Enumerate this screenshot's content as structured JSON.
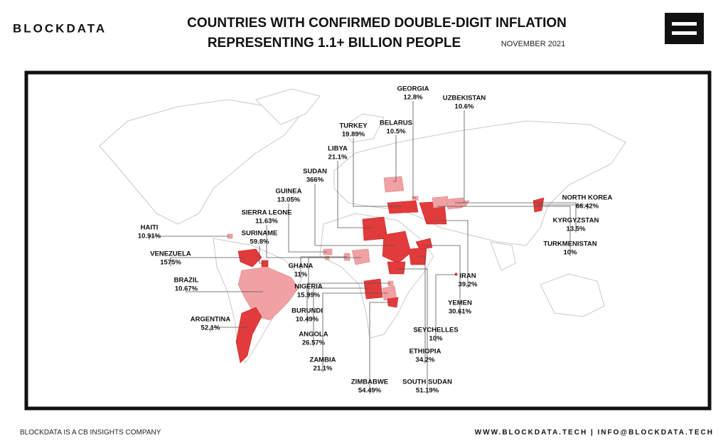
{
  "header": {
    "logo": "BLOCKDATA",
    "title_line1": "COUNTRIES WITH CONFIRMED DOUBLE-DIGIT INFLATION",
    "title_line2": "REPRESENTING 1.1+ BILLION PEOPLE",
    "date": "NOVEMBER 2021"
  },
  "countries": [
    {
      "name": "GEORGIA",
      "value": "12.8%"
    },
    {
      "name": "UZBEKISTAN",
      "value": "10.6%"
    },
    {
      "name": "BELARUS",
      "value": "10.5%"
    },
    {
      "name": "TURKEY",
      "value": "19.89%"
    },
    {
      "name": "LIBYA",
      "value": "21.1%"
    },
    {
      "name": "SUDAN",
      "value": "366%"
    },
    {
      "name": "GUINEA",
      "value": "13.05%"
    },
    {
      "name": "SIERRA LEONE",
      "value": "11.63%"
    },
    {
      "name": "HAITI",
      "value": "10.91%"
    },
    {
      "name": "SURINAME",
      "value": "59.8%"
    },
    {
      "name": "VENEZUELA",
      "value": "1575%"
    },
    {
      "name": "GHANA",
      "value": "11%"
    },
    {
      "name": "BRAZIL",
      "value": "10.67%"
    },
    {
      "name": "NIGERIA",
      "value": "15.99%"
    },
    {
      "name": "BURUNDI",
      "value": "10.49%"
    },
    {
      "name": "ARGENTINA",
      "value": "52.1%"
    },
    {
      "name": "ANGOLA",
      "value": "26.57%"
    },
    {
      "name": "ZAMBIA",
      "value": "21.1%"
    },
    {
      "name": "ZIMBABWE",
      "value": "54.49%"
    },
    {
      "name": "SOUTH SUDAN",
      "value": "51.19%"
    },
    {
      "name": "ETHIOPIA",
      "value": "34.2%"
    },
    {
      "name": "SEYCHELLES",
      "value": "10%"
    },
    {
      "name": "YEMEN",
      "value": "30.61%"
    },
    {
      "name": "IRAN",
      "value": "39.2%"
    },
    {
      "name": "TURKMENISTAN",
      "value": "10%"
    },
    {
      "name": "KYRGYZSTAN",
      "value": "13.5%"
    },
    {
      "name": "NORTH KOREA",
      "value": "66.42%"
    }
  ],
  "footer": {
    "left": "BLOCKDATA IS A CB INSIGHTS COMPANY",
    "right": "WWW.BLOCKDATA.TECH | INFO@BLOCKDATA.TECH"
  }
}
